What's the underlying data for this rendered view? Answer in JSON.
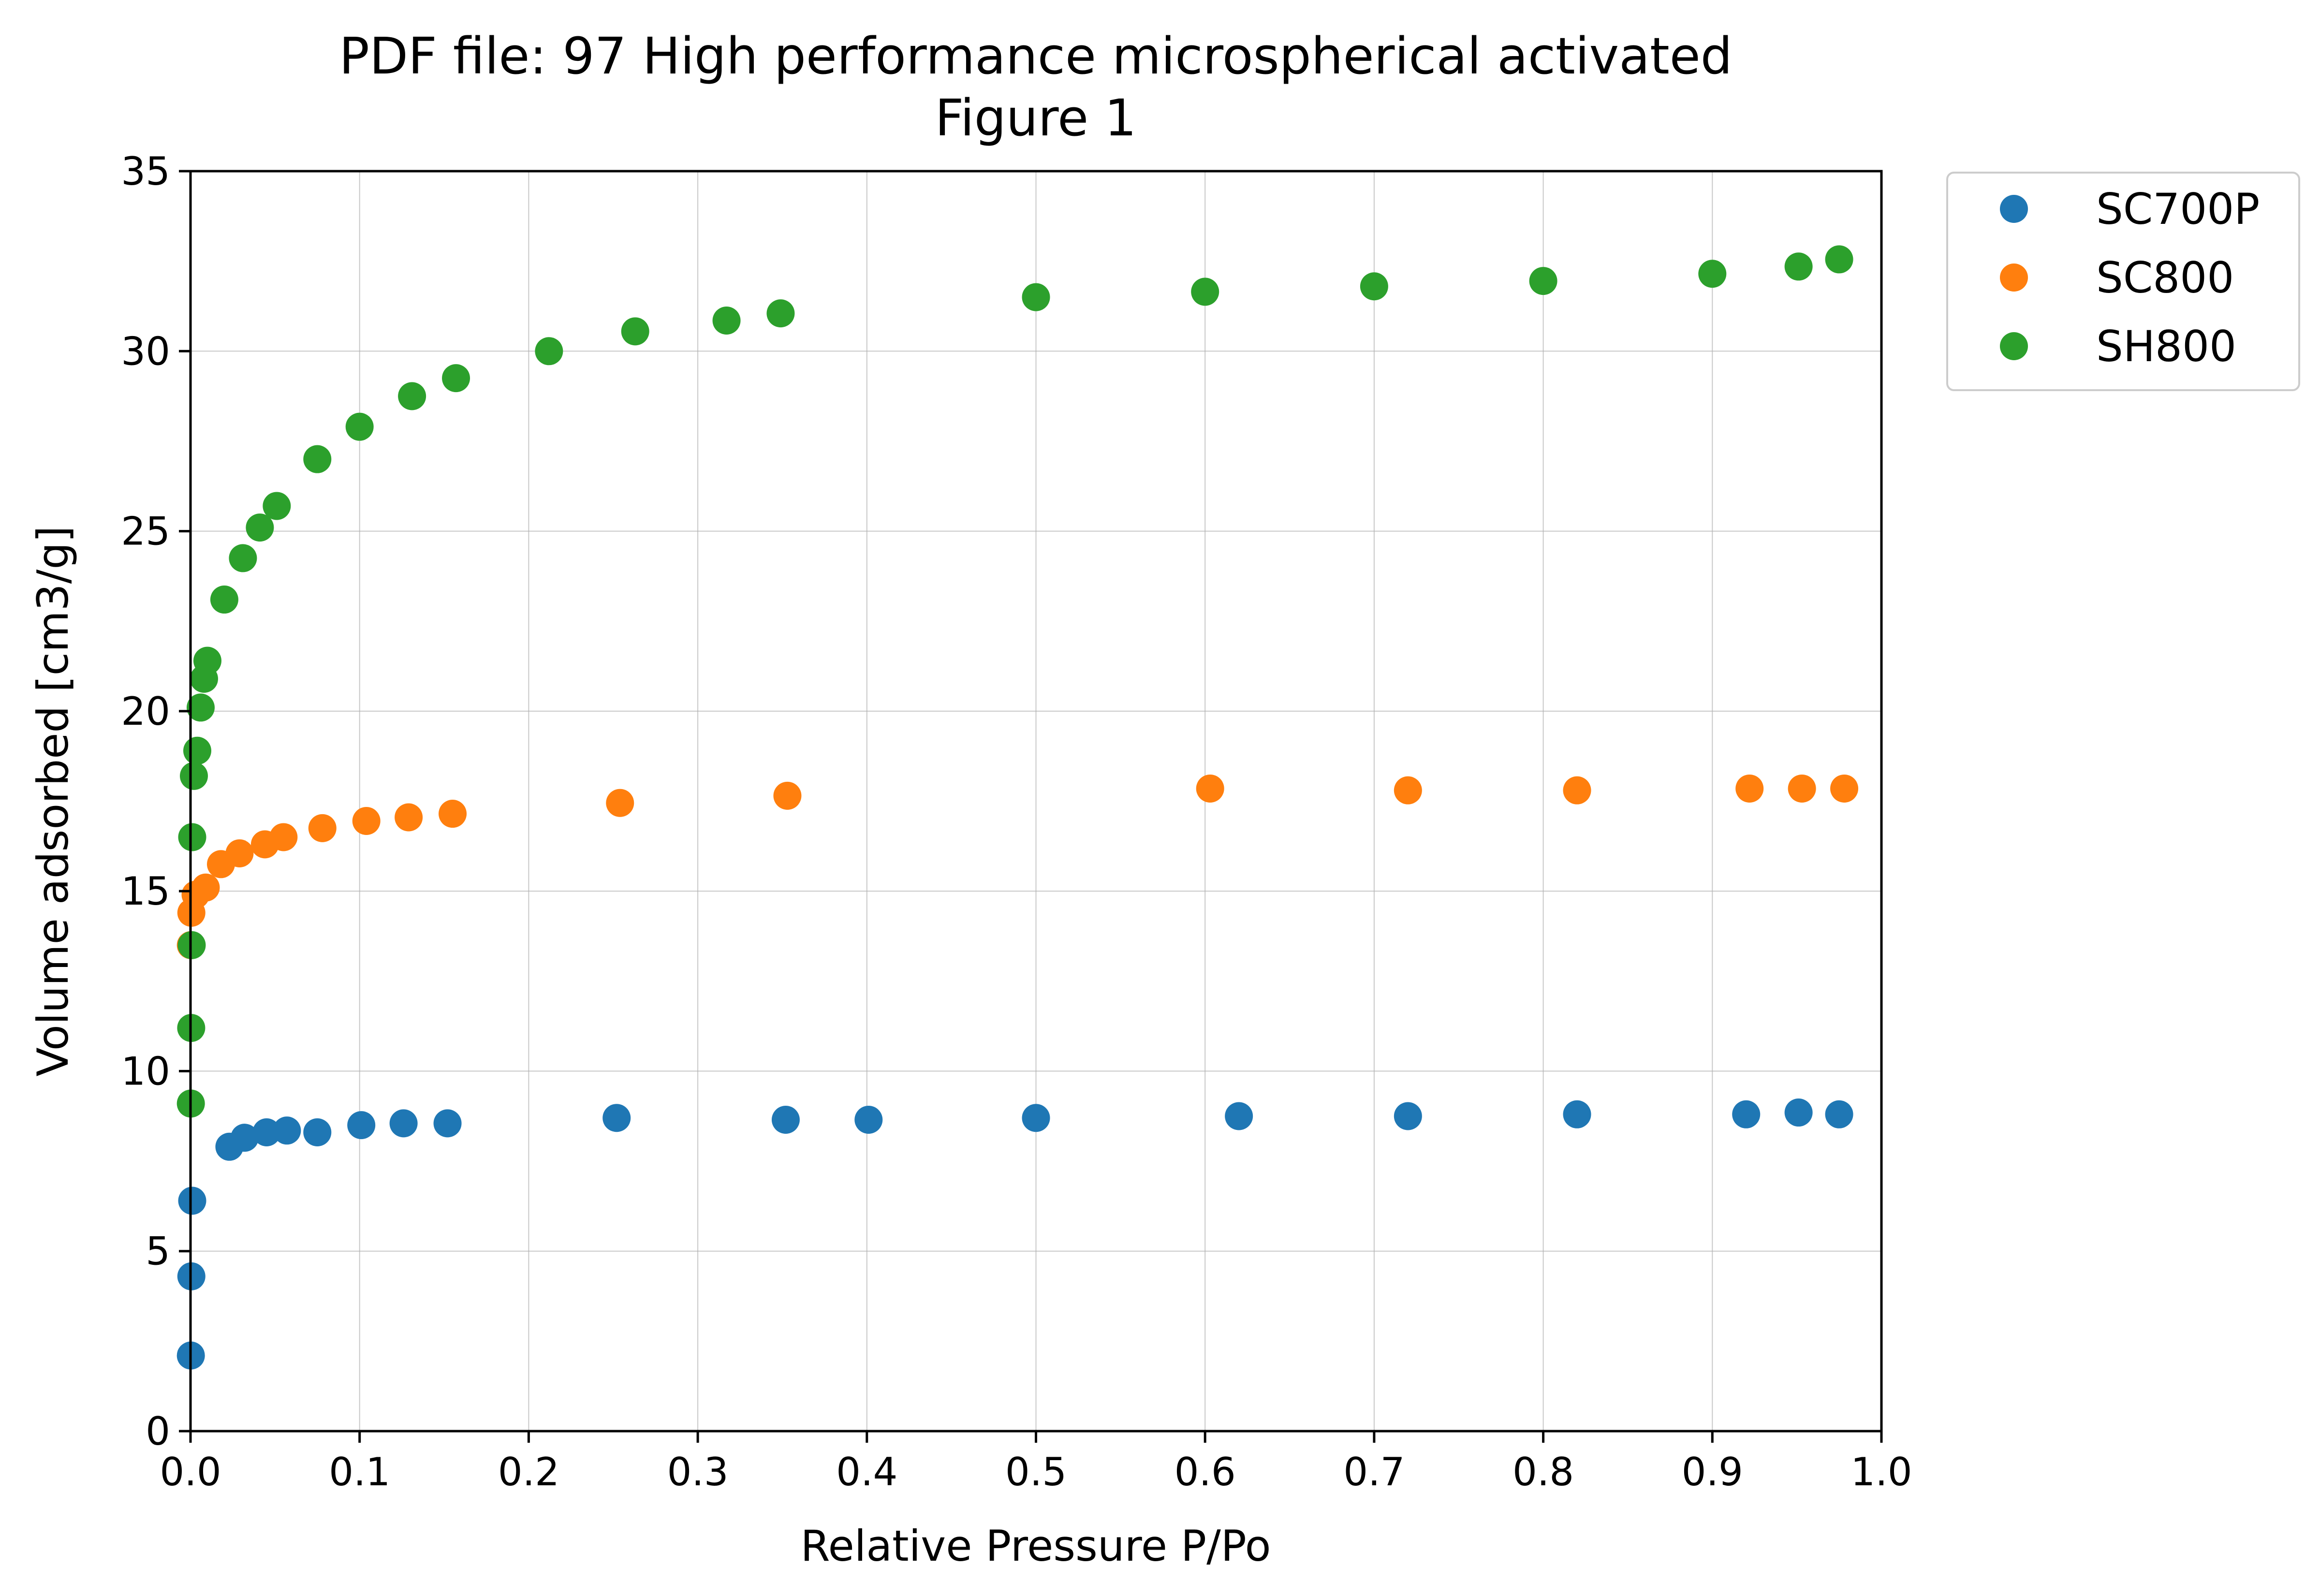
{
  "chart_data": {
    "type": "scatter",
    "title_line1": "PDF file: 97 High performance microspherical activated",
    "title_line2": "Figure 1",
    "xlabel": "Relative Pressure P/Po",
    "ylabel": "Volume adsorbed [cm3/g]",
    "xlim": [
      0.0,
      1.0
    ],
    "ylim": [
      0,
      35
    ],
    "xticks": [
      "0.0",
      "0.1",
      "0.2",
      "0.3",
      "0.4",
      "0.5",
      "0.6",
      "0.7",
      "0.8",
      "0.9",
      "1.0"
    ],
    "yticks": [
      "0",
      "5",
      "10",
      "15",
      "20",
      "25",
      "30",
      "35"
    ],
    "grid": true,
    "legend_position": "outside-top-right",
    "series": [
      {
        "name": "SC700P",
        "color": "#1f77b4",
        "x": [
          0.0002,
          0.0005,
          0.001,
          0.023,
          0.032,
          0.045,
          0.057,
          0.075,
          0.101,
          0.126,
          0.152,
          0.252,
          0.352,
          0.401,
          0.5,
          0.62,
          0.72,
          0.82,
          0.92,
          0.951,
          0.975
        ],
        "y": [
          2.1,
          4.3,
          6.4,
          7.9,
          8.15,
          8.3,
          8.35,
          8.3,
          8.5,
          8.55,
          8.55,
          8.7,
          8.65,
          8.65,
          8.7,
          8.75,
          8.75,
          8.8,
          8.8,
          8.85,
          8.8
        ]
      },
      {
        "name": "SC800",
        "color": "#ff7f0e",
        "x": [
          0.0002,
          0.0005,
          0.003,
          0.009,
          0.018,
          0.029,
          0.044,
          0.055,
          0.078,
          0.104,
          0.129,
          0.155,
          0.254,
          0.353,
          0.603,
          0.72,
          0.82,
          0.922,
          0.953,
          0.978
        ],
        "y": [
          13.5,
          14.4,
          14.9,
          15.1,
          15.75,
          16.05,
          16.3,
          16.5,
          16.75,
          16.95,
          17.05,
          17.15,
          17.45,
          17.65,
          17.85,
          17.8,
          17.8,
          17.85,
          17.85,
          17.85
        ]
      },
      {
        "name": "SH800",
        "color": "#2ca02c",
        "x": [
          0.0002,
          0.0004,
          0.0007,
          0.001,
          0.002,
          0.004,
          0.006,
          0.008,
          0.01,
          0.02,
          0.031,
          0.041,
          0.051,
          0.075,
          0.1,
          0.131,
          0.157,
          0.212,
          0.263,
          0.317,
          0.349,
          0.5,
          0.6,
          0.7,
          0.8,
          0.9,
          0.951,
          0.975
        ],
        "y": [
          9.1,
          11.2,
          13.5,
          16.5,
          18.2,
          18.9,
          20.1,
          20.9,
          21.4,
          23.1,
          24.25,
          25.1,
          25.7,
          27.0,
          27.9,
          28.75,
          29.25,
          30.0,
          30.55,
          30.85,
          31.05,
          31.5,
          31.65,
          31.8,
          31.95,
          32.15,
          32.35,
          32.55
        ]
      }
    ]
  }
}
